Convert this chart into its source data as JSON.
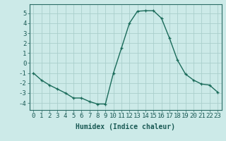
{
  "x": [
    0,
    1,
    2,
    3,
    4,
    5,
    6,
    7,
    8,
    9,
    10,
    11,
    12,
    13,
    14,
    15,
    16,
    17,
    18,
    19,
    20,
    21,
    22,
    23
  ],
  "y": [
    -1.0,
    -1.7,
    -2.2,
    -2.6,
    -3.0,
    -3.5,
    -3.5,
    -3.85,
    -4.1,
    -4.1,
    -1.0,
    1.5,
    4.0,
    5.2,
    5.25,
    5.25,
    4.5,
    2.5,
    0.3,
    -1.1,
    -1.7,
    -2.1,
    -2.2,
    -2.9
  ],
  "line_color": "#1a6b5a",
  "marker": "+",
  "marker_size": 3,
  "bg_color": "#cceae8",
  "grid_color": "#aacfcc",
  "xlabel": "Humidex (Indice chaleur)",
  "xlabel_fontsize": 7,
  "tick_fontsize": 6.5,
  "xlim": [
    -0.5,
    23.5
  ],
  "ylim": [
    -4.7,
    5.9
  ],
  "yticks": [
    -4,
    -3,
    -2,
    -1,
    0,
    1,
    2,
    3,
    4,
    5
  ],
  "xticks": [
    0,
    1,
    2,
    3,
    4,
    5,
    6,
    7,
    8,
    9,
    10,
    11,
    12,
    13,
    14,
    15,
    16,
    17,
    18,
    19,
    20,
    21,
    22,
    23
  ],
  "spine_color": "#2a6b65",
  "line_width": 1.0,
  "marker_edge_width": 0.9
}
